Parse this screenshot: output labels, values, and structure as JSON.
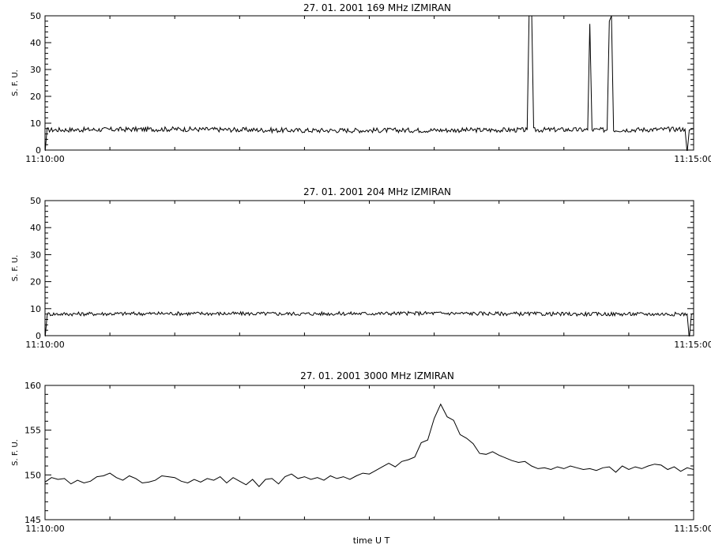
{
  "xlabel": "time  U T",
  "chart_data": [
    {
      "type": "line",
      "title": "27.  01.  2001    169 MHz    IZMIRAN",
      "ylabel": "S. F. U.",
      "ylim": [
        0,
        50
      ],
      "yticks": [
        0,
        10,
        20,
        30,
        40,
        50
      ],
      "xlim": [
        "11:10:00",
        "11:15:00"
      ],
      "xtick_labels": [
        "11:10:00",
        "11:15:00"
      ],
      "baseline": 7.5,
      "series": [
        {
          "x": [
            "11:09:59",
            "11:10:00",
            "11:10:01",
            "11:11:00",
            "11:12:00",
            "11:13:00",
            "11:13:43",
            "11:13:44",
            "11:13:45",
            "11:13:46",
            "11:14:00",
            "11:14:11",
            "11:14:12",
            "11:14:13",
            "11:14:20",
            "11:14:21",
            "11:14:22",
            "11:14:23",
            "11:14:56",
            "11:14:57",
            "11:14:58",
            "11:15:00"
          ],
          "values": [
            7.5,
            -1,
            7.5,
            7.8,
            7.3,
            7.4,
            7.5,
            55,
            55,
            7.5,
            7.6,
            7.5,
            47,
            7.5,
            7.5,
            48,
            50,
            7.5,
            7.8,
            -1,
            7.5,
            8.0
          ]
        }
      ]
    },
    {
      "type": "line",
      "title": "27.  01.  2001    204 MHz    IZMIRAN",
      "ylabel": "S. F. U.",
      "ylim": [
        0,
        50
      ],
      "yticks": [
        0,
        10,
        20,
        30,
        40,
        50
      ],
      "xlim": [
        "11:10:00",
        "11:15:00"
      ],
      "xtick_labels": [
        "11:10:00",
        "11:15:00"
      ],
      "baseline": 8.0,
      "series": [
        {
          "x": [
            "11:09:59",
            "11:10:00",
            "11:10:01",
            "11:11:00",
            "11:12:00",
            "11:13:00",
            "11:14:00",
            "11:14:57",
            "11:14:58",
            "11:14:59",
            "11:15:00"
          ],
          "values": [
            8.0,
            -1,
            8.0,
            8.2,
            8.1,
            8.3,
            8.0,
            8.0,
            -1,
            8.0,
            8.2
          ]
        }
      ]
    },
    {
      "type": "line",
      "title": "27.  01.  2001    3000 MHz    IZMIRAN",
      "ylabel": "S. F. U.",
      "ylim": [
        145,
        160
      ],
      "yticks": [
        145,
        150,
        155,
        160
      ],
      "xlim": [
        "11:10:00",
        "11:15:00"
      ],
      "xtick_labels": [
        "11:10:00",
        "11:15:00"
      ],
      "series": [
        {
          "x": [
            "11:09:57",
            "11:10:00",
            "11:10:03",
            "11:10:06",
            "11:10:09",
            "11:10:12",
            "11:10:15",
            "11:10:18",
            "11:10:21",
            "11:10:24",
            "11:10:27",
            "11:10:30",
            "11:10:33",
            "11:10:36",
            "11:10:39",
            "11:10:42",
            "11:10:45",
            "11:10:48",
            "11:10:51",
            "11:10:54",
            "11:10:57",
            "11:11:00",
            "11:11:03",
            "11:11:06",
            "11:11:09",
            "11:11:12",
            "11:11:15",
            "11:11:18",
            "11:11:21",
            "11:11:24",
            "11:11:27",
            "11:11:30",
            "11:11:33",
            "11:11:36",
            "11:11:39",
            "11:11:42",
            "11:11:45",
            "11:11:48",
            "11:11:51",
            "11:11:54",
            "11:11:57",
            "11:12:00",
            "11:12:03",
            "11:12:06",
            "11:12:09",
            "11:12:12",
            "11:12:15",
            "11:12:18",
            "11:12:21",
            "11:12:24",
            "11:12:27",
            "11:12:30",
            "11:12:33",
            "11:12:36",
            "11:12:39",
            "11:12:42",
            "11:12:45",
            "11:12:48",
            "11:12:51",
            "11:12:54",
            "11:12:57",
            "11:13:00",
            "11:13:03",
            "11:13:06",
            "11:13:09",
            "11:13:12",
            "11:13:15",
            "11:13:18",
            "11:13:21",
            "11:13:24",
            "11:13:27",
            "11:13:30",
            "11:13:33",
            "11:13:36",
            "11:13:39",
            "11:13:42",
            "11:13:45",
            "11:13:48",
            "11:13:51",
            "11:13:54",
            "11:13:57",
            "11:14:00",
            "11:14:03",
            "11:14:06",
            "11:14:09",
            "11:14:12",
            "11:14:15",
            "11:14:18",
            "11:14:21",
            "11:14:24",
            "11:14:27",
            "11:14:30",
            "11:14:33",
            "11:14:36",
            "11:14:39",
            "11:14:42",
            "11:14:45",
            "11:14:48",
            "11:14:51",
            "11:14:54",
            "11:14:57",
            "11:15:00",
            "11:15:03"
          ],
          "values": [
            148.9,
            149.2,
            149.7,
            149.5,
            149.6,
            149.0,
            149.4,
            149.1,
            149.3,
            149.8,
            149.9,
            150.2,
            149.7,
            149.4,
            149.9,
            149.6,
            149.1,
            149.2,
            149.4,
            149.9,
            149.8,
            149.7,
            149.3,
            149.1,
            149.5,
            149.2,
            149.6,
            149.4,
            149.8,
            149.1,
            149.7,
            149.3,
            148.9,
            149.5,
            148.7,
            149.5,
            149.6,
            149.0,
            149.8,
            150.1,
            149.6,
            149.8,
            149.5,
            149.7,
            149.4,
            149.9,
            149.6,
            149.8,
            149.5,
            149.9,
            150.2,
            150.1,
            150.5,
            150.9,
            151.3,
            150.9,
            151.5,
            151.7,
            152.0,
            153.6,
            153.9,
            156.3,
            157.9,
            156.5,
            156.1,
            154.5,
            154.1,
            153.5,
            152.4,
            152.3,
            152.6,
            152.2,
            151.9,
            151.6,
            151.4,
            151.5,
            151.0,
            150.7,
            150.8,
            150.6,
            150.9,
            150.7,
            151.0,
            150.8,
            150.6,
            150.7,
            150.5,
            150.8,
            150.9,
            150.3,
            151.0,
            150.6,
            150.9,
            150.7,
            151.0,
            151.2,
            151.1,
            150.6,
            150.9,
            150.4,
            150.8,
            150.6,
            151.0
          ]
        }
      ]
    }
  ]
}
